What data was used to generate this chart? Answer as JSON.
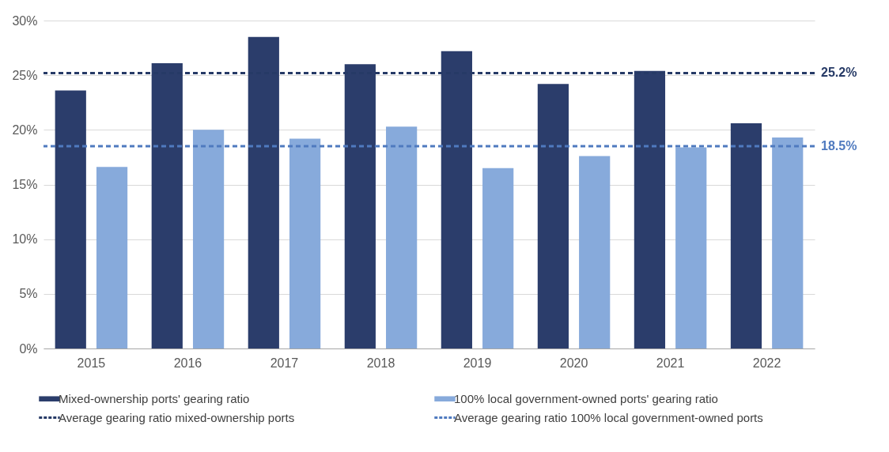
{
  "chart_data": {
    "type": "bar",
    "categories": [
      "2015",
      "2016",
      "2017",
      "2018",
      "2019",
      "2020",
      "2021",
      "2022"
    ],
    "series": [
      {
        "name": "Mixed-ownership ports' gearing ratio",
        "color": "#2b3d6b",
        "values": [
          23.6,
          26.1,
          28.5,
          26.0,
          27.2,
          24.2,
          25.4,
          20.6
        ]
      },
      {
        "name": "100% local government-owned ports' gearing ratio",
        "color": "#87aadb",
        "values": [
          16.6,
          20.0,
          19.2,
          20.3,
          16.5,
          17.6,
          18.4,
          19.3
        ]
      }
    ],
    "ylim": [
      0,
      30
    ],
    "yticks": [
      {
        "value": 0,
        "label": "0%"
      },
      {
        "value": 5,
        "label": "5%"
      },
      {
        "value": 10,
        "label": "10%"
      },
      {
        "value": 15,
        "label": "15%"
      },
      {
        "value": 20,
        "label": "20%"
      },
      {
        "value": 25,
        "label": "25%"
      },
      {
        "value": 30,
        "label": "30%"
      }
    ],
    "ref_lines": [
      {
        "axis": "y",
        "value": 25.2,
        "label": "Average gearing ratio mixed-ownership ports",
        "color": "#263a66",
        "line_style": "dashed"
      },
      {
        "axis": "y",
        "value": 18.5,
        "label": "Average gearing ratio 100% local government-owned ports",
        "color": "#4f7abf",
        "line_style": "dashed"
      }
    ],
    "annotations": [
      "25.2%",
      "18.5%"
    ],
    "grid": "y",
    "legend": "bottom"
  }
}
